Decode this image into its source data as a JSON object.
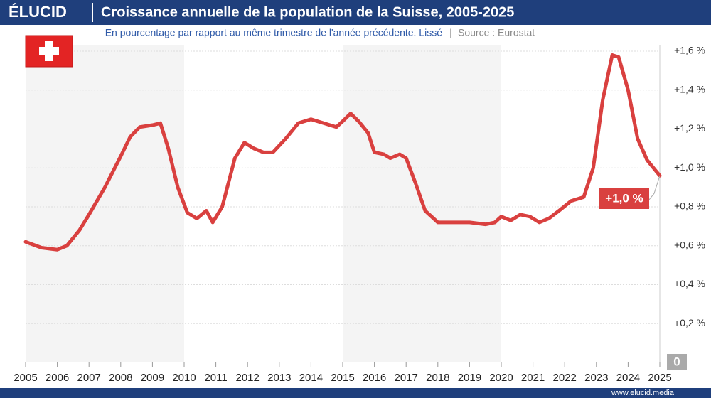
{
  "chart_data": {
    "type": "line",
    "brand": "ÉLUCID",
    "title": "Croissance annuelle de la population de la Suisse, 2005-2025",
    "subtitle": "En pourcentage par rapport au même trimestre de l'année précédente. Lissé",
    "source": "Source : Eurostat",
    "footer": "www.elucid.media",
    "annotation": "+1,0 %",
    "color": "#d9403f",
    "shaded_ranges": [
      [
        2005,
        2010
      ],
      [
        2015,
        2020
      ]
    ],
    "x": [
      2005.0,
      2005.5,
      2006.0,
      2006.3,
      2006.7,
      2007.0,
      2007.5,
      2008.0,
      2008.3,
      2008.6,
      2009.0,
      2009.25,
      2009.5,
      2009.8,
      2010.1,
      2010.4,
      2010.7,
      2010.9,
      2011.2,
      2011.6,
      2011.9,
      2012.2,
      2012.5,
      2012.8,
      2013.2,
      2013.6,
      2014.0,
      2014.4,
      2014.8,
      2015.0,
      2015.25,
      2015.5,
      2015.8,
      2016.0,
      2016.3,
      2016.5,
      2016.8,
      2017.0,
      2017.3,
      2017.6,
      2018.0,
      2018.5,
      2019.0,
      2019.5,
      2019.8,
      2020.0,
      2020.3,
      2020.6,
      2020.9,
      2021.2,
      2021.5,
      2021.9,
      2022.2,
      2022.6,
      2022.9,
      2023.2,
      2023.5,
      2023.7,
      2024.0,
      2024.3,
      2024.6,
      2025.0
    ],
    "values": [
      0.62,
      0.59,
      0.58,
      0.6,
      0.68,
      0.76,
      0.9,
      1.06,
      1.16,
      1.21,
      1.22,
      1.23,
      1.1,
      0.9,
      0.77,
      0.74,
      0.78,
      0.72,
      0.8,
      1.05,
      1.13,
      1.1,
      1.08,
      1.08,
      1.15,
      1.23,
      1.25,
      1.23,
      1.21,
      1.24,
      1.28,
      1.24,
      1.18,
      1.08,
      1.07,
      1.05,
      1.07,
      1.05,
      0.92,
      0.78,
      0.72,
      0.72,
      0.72,
      0.71,
      0.72,
      0.75,
      0.73,
      0.76,
      0.75,
      0.72,
      0.74,
      0.79,
      0.83,
      0.85,
      1.0,
      1.35,
      1.58,
      1.57,
      1.4,
      1.15,
      1.04,
      0.96
    ],
    "xlim": [
      2005,
      2025
    ],
    "xticks": [
      2005,
      2006,
      2007,
      2008,
      2009,
      2010,
      2011,
      2012,
      2013,
      2014,
      2015,
      2016,
      2017,
      2018,
      2019,
      2020,
      2021,
      2022,
      2023,
      2024,
      2025
    ],
    "ylim": [
      0,
      1.6
    ],
    "yticks": [
      0,
      {
        "value": 0.2,
        "label": "+0,2 %"
      },
      {
        "value": 0.4,
        "label": "+0,4 %"
      },
      {
        "value": 0.6,
        "label": "+0,6 %"
      },
      {
        "value": 0.8,
        "label": "+0,8 %"
      },
      {
        "value": 1.0,
        "label": "+1,0 %"
      },
      {
        "value": 1.2,
        "label": "+1,2 %"
      },
      {
        "value": 1.4,
        "label": "+1,4 %"
      },
      {
        "value": 1.6,
        "label": "+1,6 %"
      }
    ],
    "grid": true
  }
}
